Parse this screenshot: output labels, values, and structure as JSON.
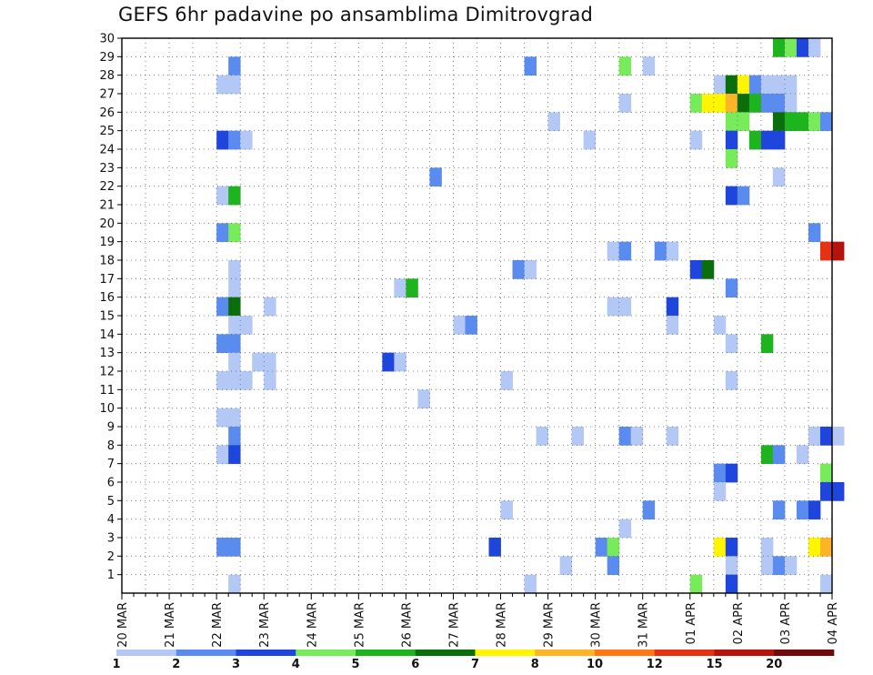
{
  "chart_data": {
    "type": "heatmap",
    "title": "GEFS 6hr padavine po ansamblima Dimitrovgrad",
    "x_ticks": [
      "20 MAR",
      "21 MAR",
      "22 MAR",
      "23 MAR",
      "24 MAR",
      "25 MAR",
      "26 MAR",
      "27 MAR",
      "28 MAR",
      "29 MAR",
      "30 MAR",
      "31 MAR",
      "01 APR",
      "02 APR",
      "03 APR",
      "04 APR"
    ],
    "y_ticks": [
      "1",
      "2",
      "3",
      "4",
      "5",
      "6",
      "7",
      "8",
      "9",
      "10",
      "11",
      "12",
      "13",
      "14",
      "15",
      "16",
      "17",
      "18",
      "19",
      "20",
      "21",
      "22",
      "23",
      "24",
      "25",
      "26",
      "27",
      "28",
      "29",
      "30"
    ],
    "x_range": [
      "20 MAR",
      "04 APR"
    ],
    "y_range": [
      0,
      30
    ],
    "grid": true,
    "time_step_hours": 6,
    "legend": {
      "placement": "bottom",
      "labels": [
        "1",
        "2",
        "3",
        "4",
        "5",
        "6",
        "7",
        "8",
        "10",
        "12",
        "15",
        "20"
      ],
      "colors": [
        "#b4c8f5",
        "#5a8cf0",
        "#1e46dc",
        "#78eb5a",
        "#1eb41e",
        "#0a6e0a",
        "#fff500",
        "#ffb428",
        "#ff7814",
        "#e63214",
        "#b4140a",
        "#6e0a0a"
      ]
    },
    "cells": [
      {
        "member": 30,
        "step": 55,
        "level": 5
      },
      {
        "member": 30,
        "step": 56,
        "level": 4
      },
      {
        "member": 30,
        "step": 57,
        "level": 3
      },
      {
        "member": 30,
        "step": 58,
        "level": 1
      },
      {
        "member": 29,
        "step": 9,
        "level": 2
      },
      {
        "member": 29,
        "step": 34,
        "level": 2
      },
      {
        "member": 29,
        "step": 42,
        "level": 4
      },
      {
        "member": 29,
        "step": 44,
        "level": 1
      },
      {
        "member": 28,
        "step": 8,
        "level": 1
      },
      {
        "member": 28,
        "step": 9,
        "level": 1
      },
      {
        "member": 28,
        "step": 50,
        "level": 1
      },
      {
        "member": 28,
        "step": 51,
        "level": 6
      },
      {
        "member": 28,
        "step": 52,
        "level": 7
      },
      {
        "member": 28,
        "step": 53,
        "level": 2
      },
      {
        "member": 28,
        "step": 54,
        "level": 1
      },
      {
        "member": 28,
        "step": 55,
        "level": 1
      },
      {
        "member": 28,
        "step": 56,
        "level": 1
      },
      {
        "member": 27,
        "step": 42,
        "level": 1
      },
      {
        "member": 27,
        "step": 48,
        "level": 4
      },
      {
        "member": 27,
        "step": 49,
        "level": 7
      },
      {
        "member": 27,
        "step": 50,
        "level": 7
      },
      {
        "member": 27,
        "step": 51,
        "level": 8
      },
      {
        "member": 27,
        "step": 52,
        "level": 6
      },
      {
        "member": 27,
        "step": 53,
        "level": 5
      },
      {
        "member": 27,
        "step": 54,
        "level": 2
      },
      {
        "member": 27,
        "step": 55,
        "level": 2
      },
      {
        "member": 27,
        "step": 56,
        "level": 1
      },
      {
        "member": 26,
        "step": 36,
        "level": 1
      },
      {
        "member": 26,
        "step": 51,
        "level": 4
      },
      {
        "member": 26,
        "step": 52,
        "level": 4
      },
      {
        "member": 26,
        "step": 55,
        "level": 6
      },
      {
        "member": 26,
        "step": 56,
        "level": 5
      },
      {
        "member": 26,
        "step": 57,
        "level": 5
      },
      {
        "member": 26,
        "step": 58,
        "level": 4
      },
      {
        "member": 26,
        "step": 59,
        "level": 2
      },
      {
        "member": 25,
        "step": 8,
        "level": 3
      },
      {
        "member": 25,
        "step": 9,
        "level": 2
      },
      {
        "member": 25,
        "step": 10,
        "level": 1
      },
      {
        "member": 25,
        "step": 39,
        "level": 1
      },
      {
        "member": 25,
        "step": 48,
        "level": 1
      },
      {
        "member": 25,
        "step": 51,
        "level": 3
      },
      {
        "member": 25,
        "step": 53,
        "level": 5
      },
      {
        "member": 25,
        "step": 54,
        "level": 3
      },
      {
        "member": 25,
        "step": 55,
        "level": 3
      },
      {
        "member": 24,
        "step": 51,
        "level": 4
      },
      {
        "member": 23,
        "step": 26,
        "level": 2
      },
      {
        "member": 23,
        "step": 55,
        "level": 1
      },
      {
        "member": 22,
        "step": 8,
        "level": 1
      },
      {
        "member": 22,
        "step": 9,
        "level": 5
      },
      {
        "member": 22,
        "step": 51,
        "level": 3
      },
      {
        "member": 22,
        "step": 52,
        "level": 2
      },
      {
        "member": 20,
        "step": 8,
        "level": 2
      },
      {
        "member": 20,
        "step": 9,
        "level": 4
      },
      {
        "member": 20,
        "step": 58,
        "level": 2
      },
      {
        "member": 19,
        "step": 41,
        "level": 1
      },
      {
        "member": 19,
        "step": 42,
        "level": 2
      },
      {
        "member": 19,
        "step": 45,
        "level": 2
      },
      {
        "member": 19,
        "step": 46,
        "level": 1
      },
      {
        "member": 19,
        "step": 59,
        "level": 10
      },
      {
        "member": 19,
        "step": 60,
        "level": 11
      },
      {
        "member": 18,
        "step": 9,
        "level": 1
      },
      {
        "member": 18,
        "step": 33,
        "level": 2
      },
      {
        "member": 18,
        "step": 34,
        "level": 1
      },
      {
        "member": 18,
        "step": 48,
        "level": 3
      },
      {
        "member": 18,
        "step": 49,
        "level": 6
      },
      {
        "member": 17,
        "step": 9,
        "level": 1
      },
      {
        "member": 17,
        "step": 23,
        "level": 1
      },
      {
        "member": 17,
        "step": 24,
        "level": 5
      },
      {
        "member": 17,
        "step": 51,
        "level": 2
      },
      {
        "member": 16,
        "step": 8,
        "level": 2
      },
      {
        "member": 16,
        "step": 9,
        "level": 6
      },
      {
        "member": 16,
        "step": 12,
        "level": 1
      },
      {
        "member": 16,
        "step": 41,
        "level": 1
      },
      {
        "member": 16,
        "step": 42,
        "level": 1
      },
      {
        "member": 16,
        "step": 46,
        "level": 3
      },
      {
        "member": 15,
        "step": 9,
        "level": 1
      },
      {
        "member": 15,
        "step": 10,
        "level": 1
      },
      {
        "member": 15,
        "step": 28,
        "level": 1
      },
      {
        "member": 15,
        "step": 29,
        "level": 2
      },
      {
        "member": 15,
        "step": 46,
        "level": 1
      },
      {
        "member": 15,
        "step": 50,
        "level": 1
      },
      {
        "member": 14,
        "step": 8,
        "level": 2
      },
      {
        "member": 14,
        "step": 9,
        "level": 2
      },
      {
        "member": 14,
        "step": 51,
        "level": 1
      },
      {
        "member": 14,
        "step": 54,
        "level": 5
      },
      {
        "member": 13,
        "step": 9,
        "level": 1
      },
      {
        "member": 13,
        "step": 11,
        "level": 1
      },
      {
        "member": 13,
        "step": 12,
        "level": 1
      },
      {
        "member": 13,
        "step": 22,
        "level": 3
      },
      {
        "member": 13,
        "step": 23,
        "level": 1
      },
      {
        "member": 12,
        "step": 8,
        "level": 1
      },
      {
        "member": 12,
        "step": 9,
        "level": 1
      },
      {
        "member": 12,
        "step": 10,
        "level": 1
      },
      {
        "member": 12,
        "step": 12,
        "level": 1
      },
      {
        "member": 12,
        "step": 32,
        "level": 1
      },
      {
        "member": 12,
        "step": 51,
        "level": 1
      },
      {
        "member": 11,
        "step": 25,
        "level": 1
      },
      {
        "member": 10,
        "step": 8,
        "level": 1
      },
      {
        "member": 10,
        "step": 9,
        "level": 1
      },
      {
        "member": 9,
        "step": 9,
        "level": 2
      },
      {
        "member": 9,
        "step": 35,
        "level": 1
      },
      {
        "member": 9,
        "step": 38,
        "level": 1
      },
      {
        "member": 9,
        "step": 42,
        "level": 2
      },
      {
        "member": 9,
        "step": 43,
        "level": 1
      },
      {
        "member": 9,
        "step": 46,
        "level": 1
      },
      {
        "member": 9,
        "step": 58,
        "level": 1
      },
      {
        "member": 9,
        "step": 59,
        "level": 3
      },
      {
        "member": 9,
        "step": 60,
        "level": 1
      },
      {
        "member": 8,
        "step": 8,
        "level": 1
      },
      {
        "member": 8,
        "step": 9,
        "level": 3
      },
      {
        "member": 8,
        "step": 54,
        "level": 5
      },
      {
        "member": 8,
        "step": 55,
        "level": 2
      },
      {
        "member": 8,
        "step": 57,
        "level": 1
      },
      {
        "member": 7,
        "step": 50,
        "level": 2
      },
      {
        "member": 7,
        "step": 51,
        "level": 3
      },
      {
        "member": 7,
        "step": 59,
        "level": 4
      },
      {
        "member": 6,
        "step": 50,
        "level": 1
      },
      {
        "member": 6,
        "step": 59,
        "level": 3
      },
      {
        "member": 6,
        "step": 60,
        "level": 3
      },
      {
        "member": 5,
        "step": 32,
        "level": 1
      },
      {
        "member": 5,
        "step": 44,
        "level": 2
      },
      {
        "member": 5,
        "step": 55,
        "level": 2
      },
      {
        "member": 5,
        "step": 57,
        "level": 2
      },
      {
        "member": 5,
        "step": 58,
        "level": 3
      },
      {
        "member": 4,
        "step": 42,
        "level": 1
      },
      {
        "member": 3,
        "step": 8,
        "level": 2
      },
      {
        "member": 3,
        "step": 9,
        "level": 2
      },
      {
        "member": 3,
        "step": 31,
        "level": 3
      },
      {
        "member": 3,
        "step": 40,
        "level": 2
      },
      {
        "member": 3,
        "step": 41,
        "level": 4
      },
      {
        "member": 3,
        "step": 50,
        "level": 7
      },
      {
        "member": 3,
        "step": 51,
        "level": 3
      },
      {
        "member": 3,
        "step": 54,
        "level": 1
      },
      {
        "member": 3,
        "step": 58,
        "level": 7
      },
      {
        "member": 3,
        "step": 59,
        "level": 8
      },
      {
        "member": 2,
        "step": 37,
        "level": 1
      },
      {
        "member": 2,
        "step": 41,
        "level": 2
      },
      {
        "member": 2,
        "step": 51,
        "level": 1
      },
      {
        "member": 2,
        "step": 54,
        "level": 1
      },
      {
        "member": 2,
        "step": 55,
        "level": 2
      },
      {
        "member": 2,
        "step": 56,
        "level": 1
      },
      {
        "member": 1,
        "step": 9,
        "level": 1
      },
      {
        "member": 1,
        "step": 34,
        "level": 1
      },
      {
        "member": 1,
        "step": 48,
        "level": 4
      },
      {
        "member": 1,
        "step": 51,
        "level": 3
      },
      {
        "member": 1,
        "step": 59,
        "level": 1
      }
    ]
  }
}
